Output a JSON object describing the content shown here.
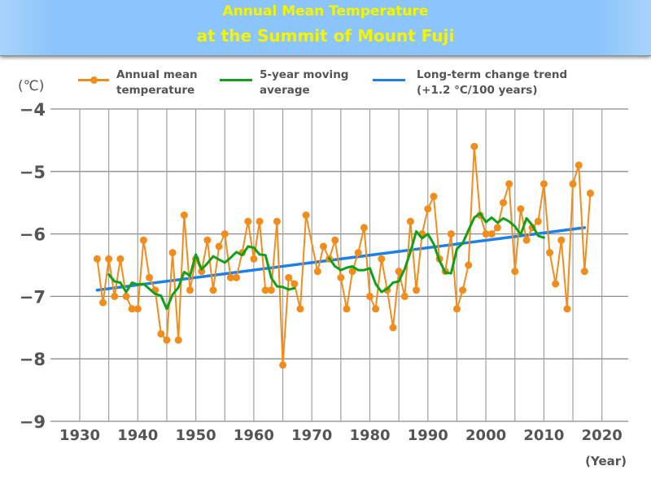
{
  "chart_data": {
    "type": "line",
    "title": "Annual Mean Temperature at the Summit of Mount Fuji",
    "title_lines": [
      "Annual Mean Temperature",
      "at the Summit of Mount Fuji"
    ],
    "ylabel": "(℃)",
    "xlabel": "(Year)",
    "xlim": [
      1925,
      2025
    ],
    "ylim": [
      -9,
      -4
    ],
    "x_ticks": [
      1930,
      1940,
      1950,
      1960,
      1970,
      1980,
      1990,
      2000,
      2010,
      2020
    ],
    "x_tick_labels": [
      "1930",
      "1940",
      "1950",
      "1960",
      "1970",
      "1980",
      "1990",
      "2000",
      "2010",
      "2020"
    ],
    "y_ticks": [
      -4,
      -5,
      -6,
      -7,
      -8,
      -9
    ],
    "y_tick_labels": [
      "−4",
      "−5",
      "−6",
      "−7",
      "−8",
      "−9"
    ],
    "grid": true,
    "x_minor_grid_step": 5,
    "legend_position": "top",
    "colors": {
      "annual": "#f28c1b",
      "moving_avg": "#11a01a",
      "trend": "#1e7fe6",
      "title": "#f5f500",
      "banner": "#8cc5fb"
    },
    "series": [
      {
        "name": "Annual mean temperature",
        "legend_lines": [
          "Annual mean",
          "temperature"
        ],
        "style": "line+markers",
        "x": [
          1933,
          1934,
          1935,
          1936,
          1937,
          1938,
          1939,
          1940,
          1941,
          1942,
          1943,
          1944,
          1945,
          1946,
          1947,
          1948,
          1949,
          1950,
          1951,
          1952,
          1953,
          1954,
          1955,
          1956,
          1957,
          1958,
          1959,
          1960,
          1961,
          1962,
          1963,
          1964,
          1965,
          1966,
          1967,
          1968,
          1969,
          1971,
          1972,
          1973,
          1974,
          1975,
          1976,
          1977,
          1978,
          1979,
          1980,
          1981,
          1982,
          1983,
          1984,
          1985,
          1986,
          1987,
          1988,
          1989,
          1990,
          1991,
          1992,
          1993,
          1994,
          1995,
          1996,
          1997,
          1998,
          1999,
          2000,
          2001,
          2002,
          2003,
          2004,
          2005,
          2006,
          2007,
          2008,
          2009,
          2010,
          2011,
          2012,
          2013,
          2014,
          2015,
          2016,
          2017,
          2018
        ],
        "values": [
          -6.4,
          -7.1,
          -6.4,
          -7.0,
          -6.4,
          -7.0,
          -7.2,
          -7.2,
          -6.1,
          -6.7,
          -6.9,
          -7.6,
          -7.7,
          -6.3,
          -7.7,
          -5.7,
          -6.9,
          -6.4,
          -6.6,
          -6.1,
          -6.9,
          -6.2,
          -6.0,
          -6.7,
          -6.7,
          -6.3,
          -5.8,
          -6.4,
          -5.8,
          -6.9,
          -6.9,
          -5.8,
          -8.1,
          -6.7,
          -6.8,
          -7.2,
          -5.7,
          -6.6,
          -6.2,
          -6.4,
          -6.1,
          -6.7,
          -7.2,
          -6.6,
          -6.3,
          -5.9,
          -7.0,
          -7.2,
          -6.4,
          -6.9,
          -7.5,
          -6.6,
          -7.0,
          -5.8,
          -6.9,
          -6.0,
          -5.6,
          -5.4,
          -6.4,
          -6.6,
          -6.0,
          -7.2,
          -6.9,
          -6.5,
          -4.6,
          -5.7,
          -6.0,
          -6.0,
          -5.9,
          -5.5,
          -5.2,
          -6.6,
          -5.6,
          -6.1,
          -5.9,
          -5.8,
          -5.2,
          -6.3,
          -6.8,
          -6.1,
          -7.2,
          -5.2,
          -4.9,
          -6.6,
          -5.35
        ]
      },
      {
        "name": "5-year moving average",
        "legend_lines": [
          "5-year moving",
          "average"
        ],
        "style": "line",
        "segments": [
          {
            "x": [
              1935,
              1936,
              1937,
              1938,
              1939,
              1940,
              1941,
              1942,
              1943,
              1944,
              1945,
              1946,
              1947,
              1948,
              1949,
              1950,
              1951,
              1952,
              1953,
              1954,
              1955,
              1956,
              1957,
              1958,
              1959,
              1960,
              1961,
              1962,
              1963,
              1964,
              1965,
              1966,
              1967
            ],
            "values": [
              -6.65,
              -6.76,
              -6.78,
              -6.93,
              -6.78,
              -6.81,
              -6.8,
              -6.88,
              -6.96,
              -6.99,
              -7.2,
              -6.97,
              -6.86,
              -6.61,
              -6.67,
              -6.33,
              -6.57,
              -6.47,
              -6.36,
              -6.41,
              -6.46,
              -6.38,
              -6.29,
              -6.34,
              -6.2,
              -6.22,
              -6.33,
              -6.34,
              -6.7,
              -6.84,
              -6.85,
              -6.89,
              -6.87
            ]
          },
          {
            "x": [
              1973,
              1974,
              1975,
              1976,
              1977,
              1978,
              1979,
              1980,
              1981,
              1982,
              1983,
              1984,
              1985,
              1986,
              1987,
              1988,
              1989,
              1990,
              1991,
              1992,
              1993,
              1994,
              1995,
              1996,
              1997,
              1998,
              1999,
              2000,
              2001,
              2002,
              2003,
              2004,
              2005,
              2006,
              2007,
              2008,
              2009,
              2010
            ],
            "values": [
              -6.39,
              -6.52,
              -6.58,
              -6.54,
              -6.52,
              -6.58,
              -6.58,
              -6.55,
              -6.8,
              -6.93,
              -6.88,
              -6.78,
              -6.76,
              -6.56,
              -6.29,
              -5.96,
              -6.07,
              -6.0,
              -6.16,
              -6.43,
              -6.62,
              -6.63,
              -6.24,
              -6.15,
              -5.94,
              -5.74,
              -5.67,
              -5.81,
              -5.74,
              -5.82,
              -5.75,
              -5.8,
              -5.88,
              -6.01,
              -5.75,
              -5.86,
              -6.03,
              -6.06
            ]
          }
        ]
      },
      {
        "name": "Long-term change trend",
        "legend_lines": [
          "Long-term change trend",
          "(+1.2 °C/100 years)"
        ],
        "style": "line",
        "x": [
          1933,
          2017
        ],
        "values": [
          -6.9,
          -5.9
        ],
        "slope_label": "+1.2 °C/100 years"
      }
    ]
  }
}
